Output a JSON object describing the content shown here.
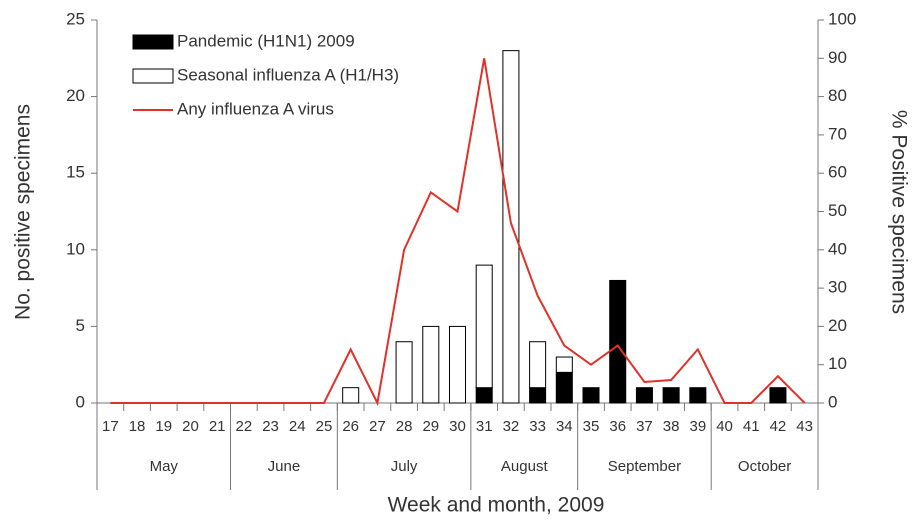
{
  "chart_data": {
    "type": "bar",
    "stacked": true,
    "x_label": "Week and month, 2009",
    "y_label": "No. positive specimens",
    "y2_label": "% Positive specimens",
    "categories": [
      "17",
      "18",
      "19",
      "20",
      "21",
      "22",
      "23",
      "24",
      "25",
      "26",
      "27",
      "28",
      "29",
      "30",
      "31",
      "32",
      "33",
      "34",
      "35",
      "36",
      "37",
      "38",
      "39",
      "40",
      "41",
      "42",
      "43"
    ],
    "x_groups": [
      {
        "label": "May",
        "start": "17",
        "end": "21"
      },
      {
        "label": "June",
        "start": "22",
        "end": "25"
      },
      {
        "label": "July",
        "start": "26",
        "end": "30"
      },
      {
        "label": "August",
        "start": "31",
        "end": "34"
      },
      {
        "label": "September",
        "start": "35",
        "end": "39"
      },
      {
        "label": "October",
        "start": "40",
        "end": "43"
      }
    ],
    "series": [
      {
        "name": "Pandemic (H1N1) 2009",
        "type": "bar",
        "color": "#000000",
        "values": [
          0,
          0,
          0,
          0,
          0,
          0,
          0,
          0,
          0,
          0,
          0,
          0,
          0,
          0,
          1,
          0,
          1,
          2,
          1,
          8,
          1,
          1,
          1,
          0,
          0,
          1,
          0
        ]
      },
      {
        "name": "Seasonal influenza A (H1/H3)",
        "type": "bar",
        "color": "#ffffff",
        "values": [
          0,
          0,
          0,
          0,
          0,
          0,
          0,
          0,
          0,
          1,
          0,
          4,
          5,
          5,
          8,
          23,
          3,
          1,
          0,
          0,
          0,
          0,
          0,
          0,
          0,
          0,
          0
        ]
      },
      {
        "name": "Any influenza A virus",
        "type": "line",
        "axis": "y2",
        "color": "#e0312a",
        "values": [
          0,
          0,
          0,
          0,
          0,
          0,
          0,
          0,
          0,
          14,
          0,
          40,
          55,
          50,
          90,
          47,
          28,
          15,
          10,
          15,
          5.5,
          6,
          14,
          0,
          0,
          7,
          0
        ]
      }
    ],
    "ylim": [
      0,
      25
    ],
    "yticks": [
      0,
      5,
      10,
      15,
      20,
      25
    ],
    "y2lim": [
      0,
      100
    ],
    "y2ticks": [
      0,
      10,
      20,
      30,
      40,
      50,
      60,
      70,
      80,
      90,
      100
    ],
    "legend": "upper left"
  }
}
